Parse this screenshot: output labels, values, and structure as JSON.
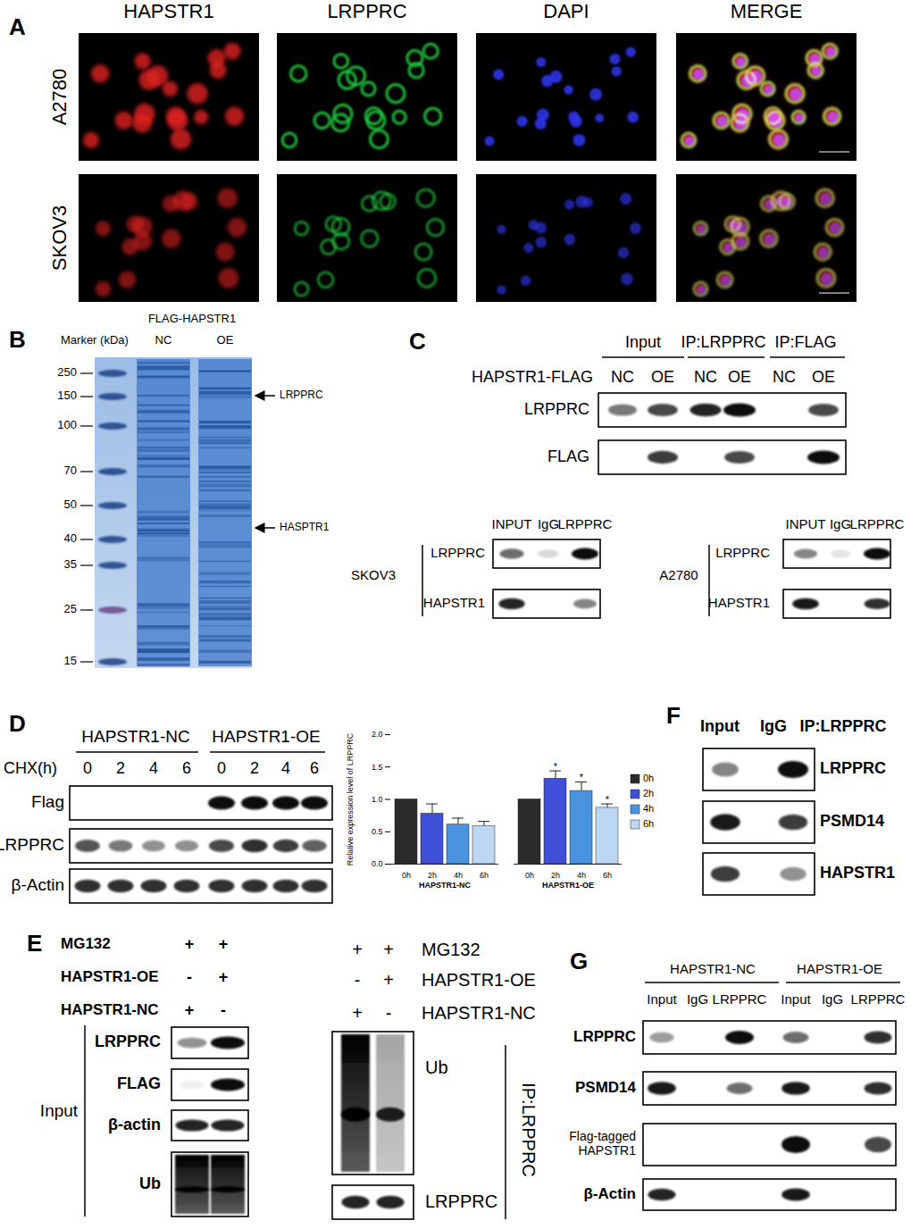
{
  "panels": {
    "A": {
      "label": "A",
      "columns": [
        "HAPSTR1",
        "LRPPRC",
        "DAPI",
        "MERGE"
      ],
      "rows": [
        "A2780",
        "SKOV3"
      ],
      "channel_colors": [
        "#e02424",
        "#22c43e",
        "#2f34e6"
      ]
    },
    "B": {
      "label": "B",
      "header": "FLAG-HAPSTR1",
      "marker_title": "Marker (kDa)",
      "lanes": [
        "NC",
        "OE"
      ],
      "markers": [
        250,
        150,
        100,
        70,
        50,
        40,
        35,
        25,
        15
      ],
      "arrows": [
        "LRPPRC",
        "HASPTR1"
      ]
    },
    "C": {
      "label": "C",
      "top": {
        "title": "HAPSTR1-FLAG",
        "groups": [
          "Input",
          "IP:LRPPRC",
          "IP:FLAG"
        ],
        "lanes": [
          "NC",
          "OE",
          "NC",
          "OE",
          "NC",
          "OE"
        ],
        "rows": [
          {
            "label": "LRPPRC",
            "bands": [
              0.55,
              0.75,
              0.9,
              1.0,
              0,
              0.75
            ]
          },
          {
            "label": "FLAG",
            "bands": [
              0,
              0.8,
              0,
              0.75,
              0,
              1.0
            ]
          }
        ]
      },
      "bottom": [
        {
          "cell": "SKOV3",
          "lanes": [
            "INPUT",
            "IgG",
            "LRPPRC"
          ],
          "rows": [
            {
              "label": "LRPPRC",
              "bands": [
                0.6,
                0.15,
                1.0
              ]
            },
            {
              "label": "HAPSTR1",
              "bands": [
                0.9,
                0,
                0.5
              ]
            }
          ]
        },
        {
          "cell": "A2780",
          "lanes": [
            "INPUT",
            "IgG",
            "LRPPRC"
          ],
          "rows": [
            {
              "label": "LRPPRC",
              "bands": [
                0.5,
                0.1,
                1.0
              ]
            },
            {
              "label": "HAPSTR1",
              "bands": [
                0.95,
                0,
                0.85
              ]
            }
          ]
        }
      ]
    },
    "D": {
      "label": "D",
      "groups": [
        "HAPSTR1-NC",
        "HAPSTR1-OE"
      ],
      "x_title": "CHX(h)",
      "lanes": [
        0,
        2,
        4,
        6,
        0,
        2,
        4,
        6
      ],
      "rows": [
        {
          "label": "Flag",
          "bands": [
            0,
            0,
            0,
            0,
            1.0,
            1.0,
            1.0,
            1.0
          ]
        },
        {
          "label": "LRPPRC",
          "bands": [
            0.7,
            0.55,
            0.45,
            0.45,
            0.75,
            0.85,
            0.8,
            0.65
          ]
        },
        {
          "label": "β-Actin",
          "bands": [
            0.85,
            0.85,
            0.85,
            0.85,
            0.85,
            0.85,
            0.85,
            0.85
          ]
        }
      ]
    },
    "E": {
      "label": "E",
      "conditions": [
        {
          "name": "MG132",
          "signs": [
            "+",
            "+"
          ]
        },
        {
          "name": "HAPSTR1-OE",
          "signs": [
            "-",
            "+"
          ]
        },
        {
          "name": "HAPSTR1-NC",
          "signs": [
            "+",
            "-"
          ]
        }
      ],
      "input": {
        "title": "Input",
        "rows": [
          {
            "label": "LRPPRC",
            "bands": [
              0.45,
              1.0
            ]
          },
          {
            "label": "FLAG",
            "bands": [
              0.05,
              1.0
            ]
          },
          {
            "label": "β-actin",
            "bands": [
              0.9,
              0.9
            ]
          },
          {
            "label": "Ub",
            "bands": [
              1.0,
              1.0
            ],
            "smear": true
          }
        ]
      },
      "ip": {
        "title": "IP:LRPPRC",
        "rows": [
          {
            "label": "Ub",
            "bands": [
              1.0,
              0.35
            ],
            "smear": true
          },
          {
            "label": "LRPPRC",
            "bands": [
              0.9,
              0.9
            ]
          }
        ]
      }
    },
    "F": {
      "label": "F",
      "lanes": [
        "Input",
        "IgG",
        "IP:LRPPRC"
      ],
      "rows": [
        {
          "label": "LRPPRC",
          "bands": [
            0.5,
            0,
            1.0
          ]
        },
        {
          "label": "PSMD14",
          "bands": [
            0.95,
            0,
            0.8
          ]
        },
        {
          "label": "HAPSTR1",
          "bands": [
            0.8,
            0,
            0.45
          ]
        }
      ]
    },
    "G": {
      "label": "G",
      "groups": [
        "HAPSTR1-NC",
        "HAPSTR1-OE"
      ],
      "lanes": [
        "Input",
        "IgG",
        "LRPPRC",
        "Input",
        "IgG",
        "LRPPRC"
      ],
      "rows": [
        {
          "label": "LRPPRC",
          "bands": [
            0.4,
            0,
            1.0,
            0.6,
            0,
            0.85
          ]
        },
        {
          "label": "PSMD14",
          "bands": [
            0.95,
            0,
            0.6,
            0.95,
            0,
            0.85
          ]
        },
        {
          "label": [
            "Flag-tagged",
            "HAPSTR1"
          ],
          "bands": [
            0,
            0,
            0,
            1.0,
            0,
            0.75
          ]
        },
        {
          "label": "β-Actin",
          "bands": [
            0.9,
            0,
            0,
            0.95,
            0,
            0
          ]
        }
      ]
    }
  },
  "chart_data": {
    "type": "bar",
    "y_label": "Relative expression level of LRPPRC",
    "categories": [
      "HAPSTR1-NC",
      "HAPSTR1-OE"
    ],
    "ylim": [
      0,
      2
    ],
    "yticks": [
      {
        "value": 0,
        "label": "0.0"
      },
      {
        "value": 0.5,
        "label": "0.5"
      },
      {
        "value": 1,
        "label": "1.0"
      },
      {
        "value": 1.5,
        "label": "1.5"
      },
      {
        "value": 2,
        "label": "2.0"
      }
    ],
    "legend": "right",
    "series": [
      {
        "name": "0h",
        "color": "#2b2b2b",
        "values": [
          1.0,
          1.0
        ],
        "errors": [
          null,
          null
        ],
        "significance": [
          null,
          null
        ]
      },
      {
        "name": "2h",
        "color": "#3f4fd8",
        "values": [
          0.78,
          1.32
        ],
        "errors": [
          0.15,
          0.12
        ],
        "significance": [
          null,
          "*"
        ]
      },
      {
        "name": "4h",
        "color": "#4a93e0",
        "values": [
          0.61,
          1.13
        ],
        "errors": [
          0.1,
          0.14
        ],
        "significance": [
          null,
          "*"
        ]
      },
      {
        "name": "6h",
        "color": "#bcd7f2",
        "values": [
          0.59,
          0.87
        ],
        "errors": [
          0.07,
          0.06
        ],
        "significance": [
          null,
          "*"
        ]
      }
    ]
  }
}
